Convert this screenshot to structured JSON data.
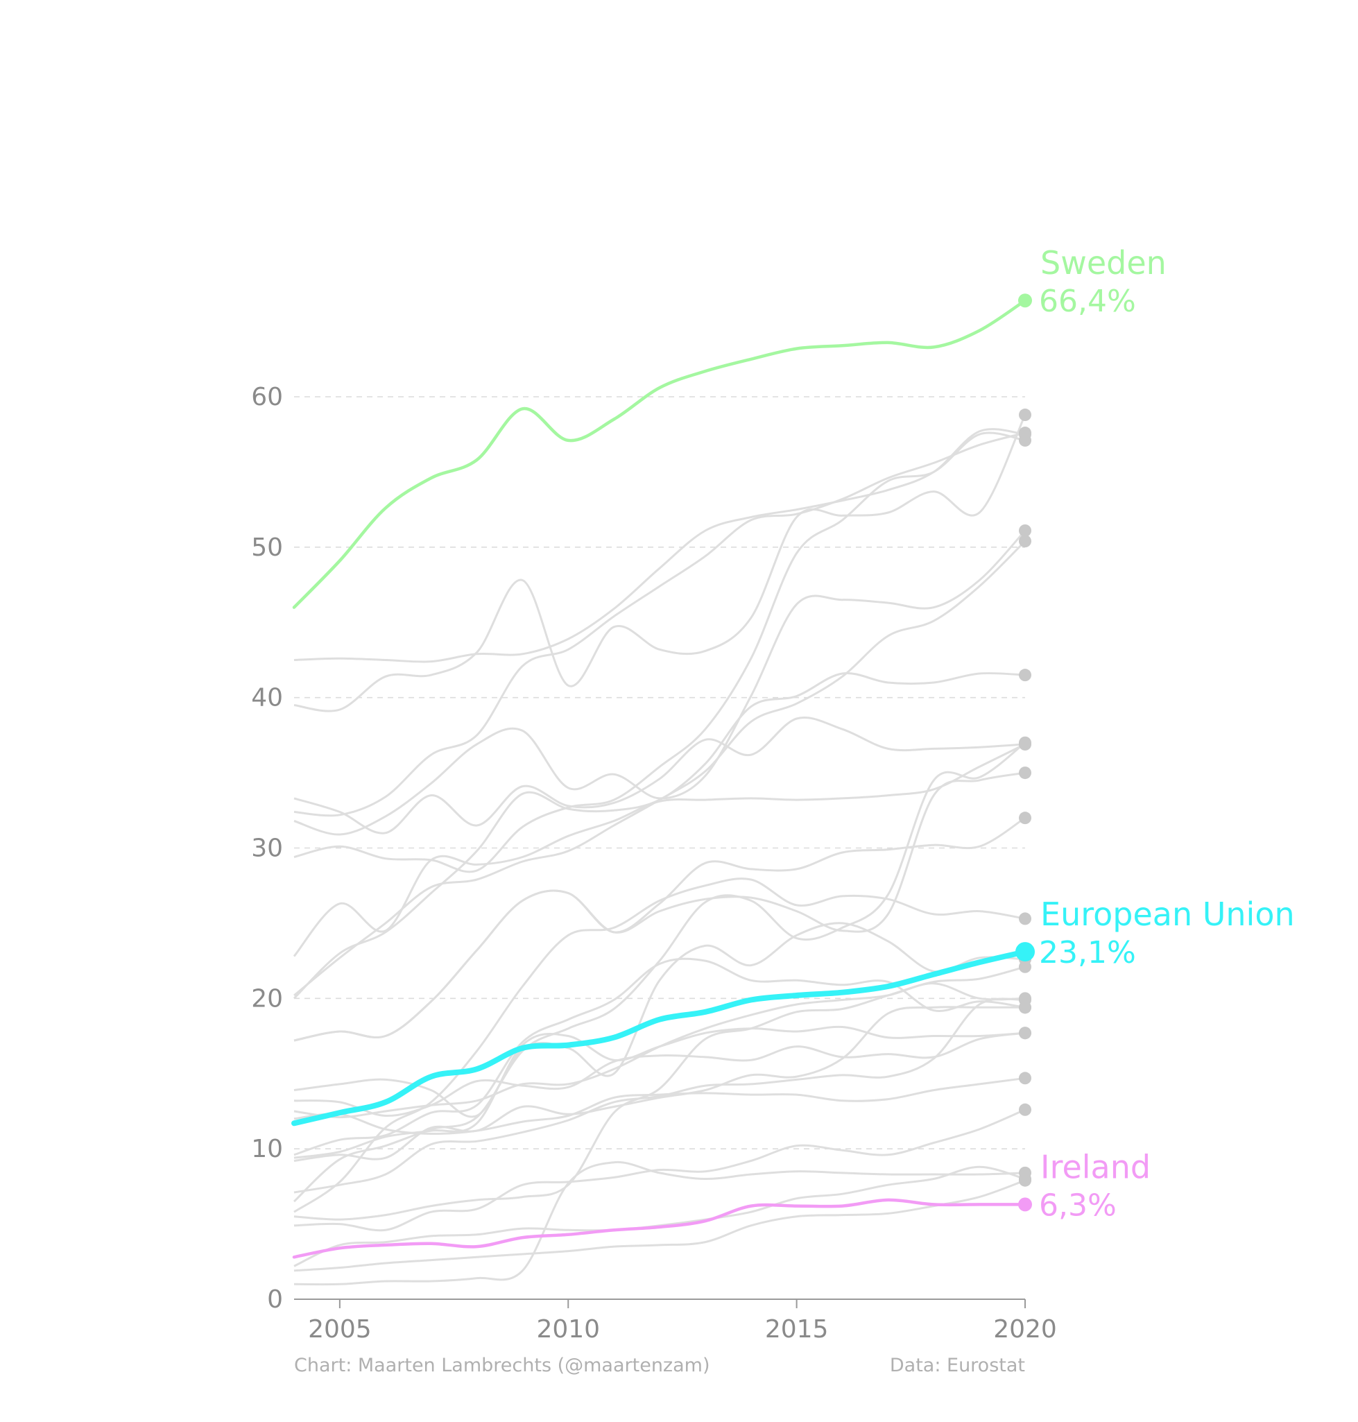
{
  "chart_data": {
    "type": "line",
    "xlim": [
      2004,
      2020
    ],
    "ylim": [
      0,
      60
    ],
    "y_ticks": [
      0,
      10,
      20,
      30,
      40,
      50,
      60
    ],
    "x_ticks": [
      2005,
      2010,
      2015,
      2020
    ],
    "y_tick_labels": [
      "0",
      "10",
      "20",
      "30",
      "40",
      "50",
      "60"
    ],
    "x_tick_labels": [
      "2005",
      "2010",
      "2015",
      "2020"
    ],
    "grid": "horizontal dashed",
    "x": [
      2004,
      2005,
      2006,
      2007,
      2008,
      2009,
      2010,
      2011,
      2012,
      2013,
      2014,
      2015,
      2016,
      2017,
      2018,
      2019,
      2020
    ],
    "highlighted": [
      {
        "name": "Sweden",
        "label": "66,4%",
        "color": "#a4f7a0",
        "values": [
          46.0,
          49.1,
          52.6,
          54.6,
          55.8,
          59.2,
          57.1,
          58.5,
          60.6,
          61.7,
          62.5,
          63.2,
          63.4,
          63.6,
          63.3,
          64.4,
          66.4
        ]
      },
      {
        "name": "European Union",
        "label": "23,1%",
        "color": "#35f2f7",
        "values": [
          11.7,
          12.4,
          13.1,
          14.8,
          15.3,
          16.7,
          16.9,
          17.4,
          18.6,
          19.1,
          19.9,
          20.2,
          20.4,
          20.8,
          21.6,
          22.4,
          23.1
        ]
      },
      {
        "name": "Ireland",
        "label": "6,3%",
        "color": "#f29bf5",
        "values": [
          2.8,
          3.4,
          3.6,
          3.7,
          3.5,
          4.1,
          4.3,
          4.6,
          4.8,
          5.2,
          6.2,
          6.2,
          6.2,
          6.6,
          6.3,
          6.3,
          6.3
        ]
      }
    ],
    "background_series_color": "#dedede",
    "background_series": [
      [
        39.5,
        39.2,
        41.4,
        41.5,
        43.0,
        47.8,
        40.8,
        44.7,
        43.2,
        43.1,
        45.3,
        52.0,
        52.1,
        52.3,
        53.7,
        52.3,
        58.8
      ],
      [
        32.4,
        32.2,
        33.4,
        36.2,
        37.5,
        42.1,
        43.2,
        45.4,
        47.4,
        49.4,
        51.8,
        52.2,
        53.2,
        54.6,
        55.6,
        56.8,
        57.6
      ],
      [
        29.4,
        30.1,
        29.3,
        29.2,
        28.5,
        31.4,
        32.7,
        33.2,
        35.4,
        37.9,
        42.6,
        49.6,
        51.8,
        54.4,
        55.0,
        57.5,
        57.1
      ],
      [
        42.5,
        42.6,
        42.5,
        42.4,
        42.9,
        42.9,
        43.9,
        45.9,
        48.6,
        51.1,
        52.0,
        52.5,
        53.1,
        53.8,
        55.0,
        57.7,
        57.5
      ],
      [
        31.8,
        30.9,
        32.1,
        34.3,
        36.9,
        37.8,
        34.0,
        34.9,
        33.3,
        34.8,
        40.1,
        46.2,
        46.5,
        46.3,
        46.0,
        47.8,
        51.1
      ],
      [
        20.2,
        22.7,
        25.0,
        27.4,
        27.9,
        29.1,
        29.8,
        31.5,
        33.2,
        35.1,
        38.4,
        39.6,
        41.4,
        44.1,
        45.1,
        47.4,
        50.4
      ],
      [
        20.0,
        23.0,
        24.4,
        27.0,
        29.8,
        33.6,
        32.6,
        32.5,
        33.2,
        35.6,
        39.4,
        40.1,
        41.6,
        41.0,
        41.0,
        41.6,
        41.5
      ],
      [
        22.8,
        26.3,
        24.5,
        29.2,
        28.9,
        29.4,
        30.8,
        31.8,
        33.1,
        33.2,
        33.3,
        33.2,
        33.3,
        33.5,
        33.9,
        35.4,
        36.9
      ],
      [
        33.3,
        32.4,
        31.0,
        33.5,
        31.5,
        34.1,
        32.8,
        33.0,
        34.6,
        37.2,
        36.2,
        38.6,
        37.9,
        36.6,
        36.6,
        36.7,
        36.9
      ],
      [
        17.2,
        17.8,
        17.5,
        19.8,
        23.2,
        26.5,
        27.0,
        24.4,
        26.3,
        29.0,
        28.6,
        28.6,
        29.7,
        29.9,
        30.2,
        30.1,
        32.0
      ],
      [
        17.2,
        17.8,
        17.5,
        19.8,
        23.2,
        26.5,
        27.0,
        24.4,
        25.8,
        26.6,
        26.7,
        25.8,
        24.5,
        25.6,
        33.5,
        34.5,
        35.0
      ],
      [
        5.8,
        7.8,
        11.4,
        13.1,
        16.5,
        20.8,
        24.2,
        24.7,
        26.5,
        27.5,
        27.9,
        26.2,
        26.8,
        26.6,
        25.6,
        25.8,
        25.3
      ],
      [
        6.5,
        9.3,
        10.2,
        11.3,
        12.1,
        16.5,
        18.0,
        19.3,
        22.5,
        26.4,
        26.5,
        24.0,
        24.7,
        26.9,
        34.5,
        34.7,
        37.0
      ],
      [
        13.9,
        14.3,
        14.6,
        13.9,
        12.2,
        16.6,
        16.7,
        15.0,
        21.2,
        23.5,
        22.2,
        24.2,
        25.0,
        23.8,
        21.8,
        22.7,
        22.6
      ],
      [
        9.6,
        10.6,
        10.9,
        12.4,
        12.9,
        17.1,
        18.6,
        19.9,
        22.3,
        22.5,
        21.2,
        21.2,
        20.9,
        21.1,
        19.2,
        19.8,
        19.4
      ],
      [
        5.5,
        5.3,
        5.6,
        6.2,
        6.6,
        6.8,
        7.6,
        12.4,
        14.0,
        17.3,
        18.0,
        19.1,
        19.3,
        20.2,
        21.1,
        21.3,
        22.1
      ],
      [
        12.5,
        12.1,
        12.5,
        12.9,
        13.2,
        14.3,
        14.3,
        15.3,
        16.8,
        18.0,
        18.9,
        19.6,
        19.9,
        20.2,
        21.0,
        20.0,
        20.0
      ],
      [
        9.4,
        9.8,
        10.8,
        11.2,
        11.7,
        16.9,
        17.5,
        15.9,
        16.8,
        17.7,
        18.0,
        17.8,
        18.1,
        17.4,
        17.5,
        17.5,
        17.7
      ],
      [
        13.2,
        13.1,
        12.2,
        12.9,
        14.5,
        14.2,
        14.1,
        15.8,
        16.2,
        16.1,
        15.9,
        16.8,
        16.1,
        16.3,
        16.1,
        17.3,
        17.7
      ],
      [
        12.0,
        12.3,
        11.3,
        11.0,
        11.2,
        11.8,
        12.2,
        13.4,
        13.6,
        13.7,
        13.6,
        13.6,
        13.2,
        13.3,
        13.9,
        14.3,
        14.7
      ],
      [
        7.1,
        7.6,
        8.3,
        10.3,
        10.5,
        11.1,
        11.9,
        13.1,
        13.5,
        14.2,
        14.3,
        14.6,
        14.9,
        14.8,
        16.0,
        19.6,
        19.9
      ],
      [
        9.2,
        9.6,
        9.4,
        11.4,
        11.2,
        12.8,
        12.3,
        12.8,
        13.4,
        13.9,
        14.9,
        14.8,
        16.0,
        19.0,
        19.4,
        19.4,
        19.4
      ],
      [
        4.9,
        5.0,
        4.6,
        5.8,
        6.0,
        7.6,
        7.8,
        8.1,
        8.6,
        8.5,
        9.2,
        10.2,
        9.9,
        9.6,
        10.4,
        11.3,
        12.6
      ],
      [
        1.0,
        1.0,
        1.2,
        1.2,
        1.4,
        1.9,
        7.7,
        9.1,
        8.4,
        8.0,
        8.3,
        8.5,
        8.4,
        8.3,
        8.3,
        8.3,
        8.4
      ],
      [
        1.9,
        2.1,
        2.4,
        2.6,
        2.8,
        3.0,
        3.2,
        3.5,
        3.6,
        3.8,
        4.9,
        5.5,
        5.6,
        5.7,
        6.2,
        6.8,
        7.9
      ],
      [
        2.2,
        3.6,
        3.8,
        4.2,
        4.3,
        4.7,
        4.6,
        4.6,
        4.9,
        5.3,
        5.8,
        6.7,
        7.0,
        7.6,
        8.0,
        8.8,
        8.0
      ]
    ],
    "credit_left": "Chart: Maarten Lambrechts (@maartenzam)",
    "credit_right": "Data: Eurostat"
  }
}
